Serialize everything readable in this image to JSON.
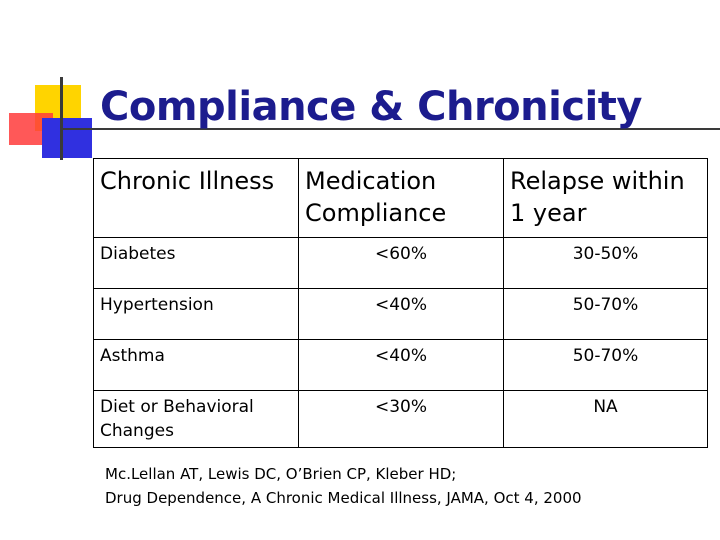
{
  "slide": {
    "title": "Compliance & Chronicity"
  },
  "table": {
    "headers": [
      "Chronic Illness",
      "Medication Compliance",
      "Relapse within 1 year"
    ],
    "rows": [
      [
        "Diabetes",
        "<60%",
        "30-50%"
      ],
      [
        "Hypertension",
        "<40%",
        "50-70%"
      ],
      [
        "Asthma",
        "<40%",
        "50-70%"
      ],
      [
        "Diet or Behavioral Changes",
        "<30%",
        "NA"
      ]
    ]
  },
  "citation": {
    "line1": "Mc.Lellan AT, Lewis DC, O’Brien CP, Kleber HD;",
    "line2": "Drug Dependence, A Chronic Medical Illness, JAMA, Oct 4, 2000"
  }
}
